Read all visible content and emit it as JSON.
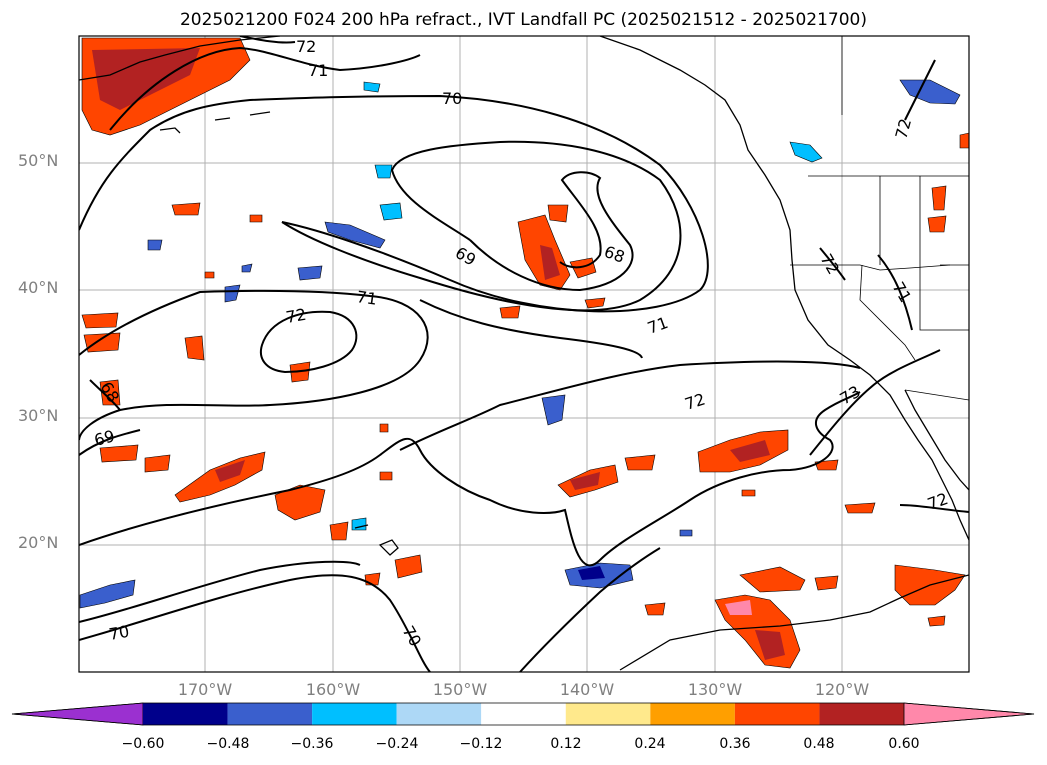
{
  "title": "2025021200 F024 200 hPa refract., IVT Landfall PC (2025021512 - 2025021700)",
  "lat_labels": [
    "50°N",
    "40°N",
    "30°N",
    "20°N"
  ],
  "lon_labels": [
    "170°W",
    "160°W",
    "150°W",
    "140°W",
    "130°W",
    "120°W"
  ],
  "contour_labels": [
    "72",
    "71",
    "70",
    "69",
    "68",
    "71",
    "72",
    "71",
    "72",
    "73",
    "72",
    "72",
    "71",
    "70",
    "69",
    "68",
    "72"
  ],
  "colorbar": {
    "tick_labels": [
      "−0.60",
      "−0.48",
      "−0.36",
      "−0.24",
      "−0.12",
      "0.12",
      "0.24",
      "0.36",
      "0.48",
      "0.60"
    ],
    "colors": [
      "#9b30d0",
      "#00008b",
      "#3a5fcd",
      "#00bfff",
      "#add8f6",
      "#ffffff",
      "#ffe98c",
      "#ff9f00",
      "#ff4500",
      "#b22222",
      "#ff88aa"
    ]
  }
}
